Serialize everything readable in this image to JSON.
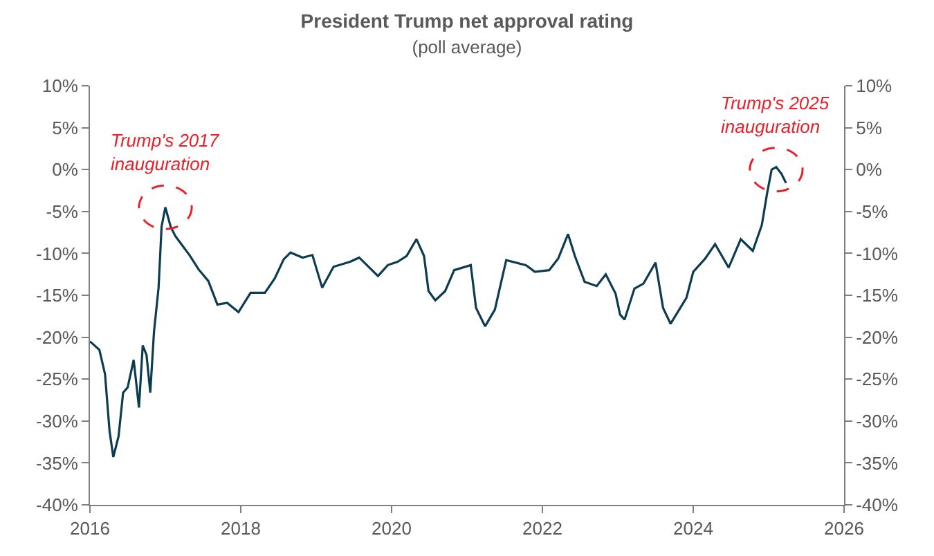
{
  "chart_data": {
    "type": "line",
    "title": "President Trump net approval rating",
    "subtitle": "(poll average)",
    "x": [
      2016.0,
      2016.125,
      2016.2,
      2016.26,
      2016.31,
      2016.38,
      2016.44,
      2016.5,
      2016.58,
      2016.65,
      2016.7,
      2016.75,
      2016.8,
      2016.85,
      2016.91,
      2016.95,
      2017.0,
      2017.07,
      2017.13,
      2017.22,
      2017.32,
      2017.44,
      2017.57,
      2017.69,
      2017.82,
      2017.97,
      2018.13,
      2018.32,
      2018.45,
      2018.57,
      2018.66,
      2018.82,
      2018.95,
      2019.08,
      2019.23,
      2019.45,
      2019.57,
      2019.82,
      2019.95,
      2020.08,
      2020.2,
      2020.33,
      2020.43,
      2020.49,
      2020.58,
      2020.71,
      2020.83,
      2021.05,
      2021.12,
      2021.24,
      2021.37,
      2021.52,
      2021.78,
      2021.9,
      2022.09,
      2022.21,
      2022.34,
      2022.43,
      2022.56,
      2022.72,
      2022.84,
      2022.97,
      2023.03,
      2023.09,
      2023.22,
      2023.34,
      2023.5,
      2023.6,
      2023.7,
      2023.91,
      2024.0,
      2024.16,
      2024.29,
      2024.47,
      2024.63,
      2024.79,
      2024.91,
      2024.98,
      2025.04,
      2025.1,
      2025.17,
      2025.23
    ],
    "series": [
      {
        "color": "#0d3b4f",
        "values": [
          -20.5,
          -21.5,
          -24.4,
          -31.2,
          -34.3,
          -31.8,
          -26.6,
          -26,
          -22.7,
          -28.4,
          -21,
          -22.1,
          -26.6,
          -19.3,
          -14.1,
          -6.8,
          -4.5,
          -6.8,
          -7.9,
          -9,
          -10.2,
          -11.9,
          -13.3,
          -16.1,
          -15.9,
          -17,
          -14.7,
          -14.7,
          -13,
          -10.7,
          -9.9,
          -10.5,
          -10.2,
          -14.1,
          -11.6,
          -11,
          -10.5,
          -12.7,
          -11.4,
          -11,
          -10.3,
          -8.3,
          -10.3,
          -14.5,
          -15.6,
          -14.5,
          -12,
          -11.4,
          -16.5,
          -18.7,
          -16.7,
          -10.8,
          -11.4,
          -12.2,
          -12,
          -10.6,
          -7.7,
          -10.3,
          -13.4,
          -13.9,
          -12.5,
          -14.8,
          -17.3,
          -17.9,
          -14.2,
          -13.6,
          -11.1,
          -16.5,
          -18.4,
          -15.3,
          -12.2,
          -10.6,
          -8.9,
          -11.7,
          -8.3,
          -9.7,
          -6.6,
          -2.8,
          0,
          0.3,
          -0.5,
          -1.6
        ]
      }
    ],
    "xlim": [
      2016,
      2026
    ],
    "xticks": [
      2016,
      2018,
      2020,
      2022,
      2024,
      2026
    ],
    "ylim": [
      -40,
      10
    ],
    "yticks": [
      {
        "value": 10,
        "label": "10%"
      },
      {
        "value": 5,
        "label": "5%"
      },
      {
        "value": 0,
        "label": "0%"
      },
      {
        "value": -5,
        "label": "-5%"
      },
      {
        "value": -10,
        "label": "-10%"
      },
      {
        "value": -15,
        "label": "-15%"
      },
      {
        "value": -20,
        "label": "-20%"
      },
      {
        "value": -25,
        "label": "-25%"
      },
      {
        "value": -30,
        "label": "-30%"
      },
      {
        "value": -35,
        "label": "-35%"
      },
      {
        "value": -40,
        "label": "-40%"
      }
    ],
    "y2lim": [
      -40,
      10
    ],
    "y2ticks": [
      {
        "value": 10,
        "label": "10%"
      },
      {
        "value": 5,
        "label": "5%"
      },
      {
        "value": 0,
        "label": "0%"
      },
      {
        "value": -5,
        "label": "-5%"
      },
      {
        "value": -10,
        "label": "-10%"
      },
      {
        "value": -15,
        "label": "-15%"
      },
      {
        "value": -20,
        "label": "-20%"
      },
      {
        "value": -25,
        "label": "-25%"
      },
      {
        "value": -30,
        "label": "-30%"
      },
      {
        "value": -35,
        "label": "-35%"
      },
      {
        "value": -40,
        "label": "-40%"
      }
    ],
    "annotations": [
      {
        "text": "Trump's 2017 inauguration",
        "x": 2017.0,
        "y": -4.5
      },
      {
        "text": "Trump's 2025 inauguration",
        "x": 2025.1,
        "y": 0
      }
    ],
    "grid": false,
    "marker": "none",
    "line_style": "solid"
  }
}
